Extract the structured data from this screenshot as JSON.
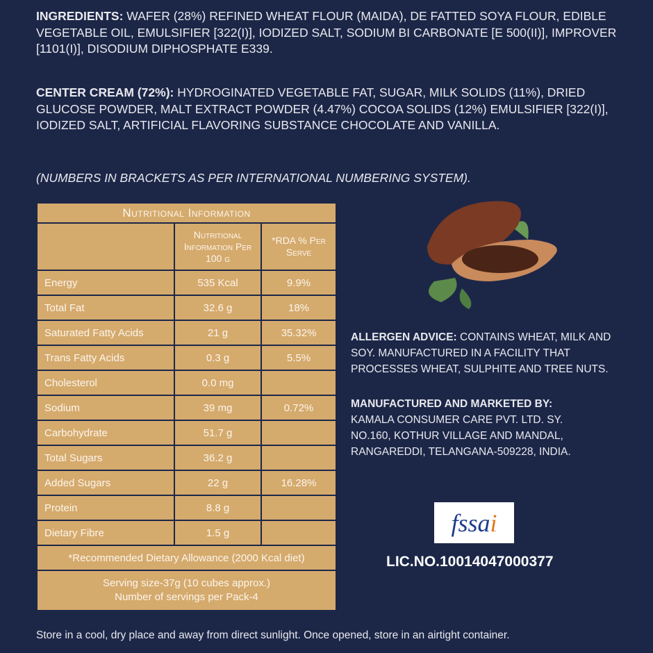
{
  "ingredients": {
    "label": "INGREDIENTS:",
    "text": " WAFER (28%) REFINED WHEAT FLOUR (MAIDA), DE FATTED SOYA FLOUR, EDIBLE VEGETABLE OIL, EMULSIFIER [322(I)], IODIZED SALT, SODIUM BI CARBONATE [E 500(II)], IMPROVER [1101(I)], DISODIUM DIPHOSPHATE E339."
  },
  "cream": {
    "label": "CENTER CREAM (72%):",
    "text": " HYDROGINATED VEGETABLE FAT, SUGAR, MILK SOLIDS (11%), DRIED GLUCOSE POWDER, MALT EXTRACT POWDER (4.47%) COCOA SOLIDS (12%) EMULSIFIER [322(I)], IODIZED SALT, ARTIFICIAL FLAVORING SUBSTANCE CHOCOLATE AND VANILLA."
  },
  "note": "(NUMBERS IN BRACKETS AS PER INTERNATIONAL NUMBERING SYSTEM).",
  "table": {
    "title": "Nutritional Information",
    "col1": "Nutritional Information Per 100 g",
    "col2": "*RDA % Per Serve",
    "rows": [
      {
        "name": "Energy",
        "per100": "535 Kcal",
        "rda": "9.9%"
      },
      {
        "name": "Total Fat",
        "per100": "32.6 g",
        "rda": "18%"
      },
      {
        "name": "Saturated Fatty Acids",
        "per100": "21 g",
        "rda": "35.32%"
      },
      {
        "name": "Trans Fatty Acids",
        "per100": "0.3 g",
        "rda": "5.5%"
      },
      {
        "name": "Cholesterol",
        "per100": "0.0 mg",
        "rda": ""
      },
      {
        "name": "Sodium",
        "per100": "39 mg",
        "rda": "0.72%"
      },
      {
        "name": "Carbohydrate",
        "per100": "51.7 g",
        "rda": ""
      },
      {
        "name": "Total Sugars",
        "per100": "36.2 g",
        "rda": ""
      },
      {
        "name": "Added Sugars",
        "per100": "22 g",
        "rda": "16.28%"
      },
      {
        "name": "Protein",
        "per100": "8.8 g",
        "rda": ""
      },
      {
        "name": "Dietary Fibre",
        "per100": "1.5 g",
        "rda": ""
      }
    ],
    "rda_note": "*Recommended Dietary Allowance (2000 Kcal diet)",
    "serving": "Serving size-37g (10 cubes approx.)",
    "servings": "Number of servings per Pack-4"
  },
  "allergen": {
    "label": "ALLERGEN ADVICE:",
    "text": " CONTAINS WHEAT, MILK AND SOY. MANUFACTURED IN A FACILITY THAT PROCESSES WHEAT, SULPHITE AND TREE NUTS."
  },
  "manufacturer": {
    "label": "MANUFACTURED AND MARKETED BY:",
    "line1": "KAMALA CONSUMER CARE PVT. LTD. SY.",
    "line2": "NO.160, KOTHUR VILLAGE AND MANDAL,",
    "line3": "RANGAREDDI, TELANGANA-509228, INDIA."
  },
  "logo": {
    "text": "fssai",
    "brand": "fssai"
  },
  "license": "LIC.NO.10014047000377",
  "storage": "Store in a cool, dry place and away from direct sunlight. Once opened, store in an airtight container.",
  "colors": {
    "background": "#1c2748",
    "table": "#d5aa6d"
  }
}
